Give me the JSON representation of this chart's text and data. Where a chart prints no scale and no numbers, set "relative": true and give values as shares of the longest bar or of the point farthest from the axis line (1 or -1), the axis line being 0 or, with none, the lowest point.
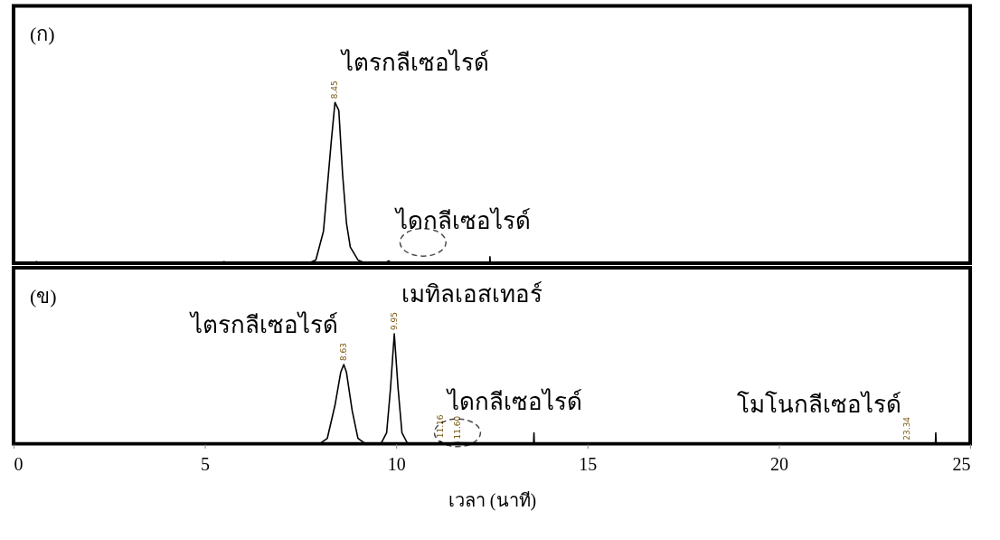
{
  "chart_data": [
    {
      "type": "line",
      "relative": true,
      "xlim": [
        0,
        25
      ],
      "tick_labels": false,
      "marker": "none",
      "series": [
        {
          "color": "#000000",
          "x": [
            0,
            0.5,
            0.6,
            0.7,
            5.4,
            5.5,
            5.6,
            7.7,
            7.9,
            8.1,
            8.3,
            8.4,
            8.5,
            8.6,
            8.7,
            8.8,
            9.0,
            9.2,
            9.7,
            9.8,
            9.9,
            12.44,
            12.45,
            12.46,
            25
          ],
          "values": [
            0,
            0,
            0.01,
            0,
            0,
            0.01,
            0,
            0,
            0.02,
            0.2,
            0.75,
            1.0,
            0.95,
            0.55,
            0.25,
            0.1,
            0.02,
            0,
            0,
            0.015,
            0,
            0,
            0.04,
            0,
            0
          ]
        }
      ],
      "annotations": [
        "(ก)",
        {
          "text": "ไตรกลีเซอไรด์",
          "x": 8.4,
          "y": 1.0
        },
        {
          "text": "8.45",
          "x": 8.4,
          "y": 1.0
        },
        {
          "text": "ไดกลีเซอไรด์",
          "x": 9.8,
          "y": 0.015
        }
      ]
    },
    {
      "type": "line",
      "relative": true,
      "xlim": [
        0,
        25
      ],
      "xticks": [
        0,
        5,
        10,
        15,
        20,
        25
      ],
      "tick_labels": "x",
      "xlabel": "เวลา (นาที)",
      "marker": "none",
      "series": [
        {
          "color": "#000000",
          "x": [
            0,
            8.0,
            8.2,
            8.4,
            8.55,
            8.63,
            8.7,
            8.85,
            9.0,
            9.2,
            9.6,
            9.75,
            9.85,
            9.95,
            10.05,
            10.15,
            10.3,
            11.1,
            11.16,
            11.25,
            11.6,
            13.59,
            13.6,
            13.61,
            24.09,
            24.1,
            24.11,
            25
          ],
          "values": [
            0,
            0,
            0.05,
            0.35,
            0.65,
            0.72,
            0.65,
            0.3,
            0.05,
            0,
            0,
            0.1,
            0.5,
            1.0,
            0.5,
            0.1,
            0,
            0,
            0.02,
            0,
            0.01,
            0,
            0.1,
            0,
            0,
            0.1,
            0,
            0
          ]
        }
      ],
      "annotations": [
        "(ข)",
        {
          "text": "ไตรกลีเซอไรด์",
          "x": 8.63,
          "y": 0.72
        },
        {
          "text": "8.63",
          "x": 8.63,
          "y": 0.72
        },
        {
          "text": "เมทิลเอสเทอร์",
          "x": 9.95,
          "y": 1.0
        },
        {
          "text": "9.95",
          "x": 9.95,
          "y": 1.0
        },
        {
          "text": "ไดกลีเซอไรด์",
          "x": 11.16,
          "y": 0.02
        },
        {
          "text": "11.16",
          "x": 11.16,
          "y": 0.02
        },
        {
          "text": "11.60",
          "x": 11.6,
          "y": 0.01
        },
        {
          "text": "โมโนกลีเซอไรด์",
          "x": 23.34,
          "y": 0
        },
        {
          "text": "23.34",
          "x": 23.34,
          "y": 0
        }
      ]
    }
  ]
}
